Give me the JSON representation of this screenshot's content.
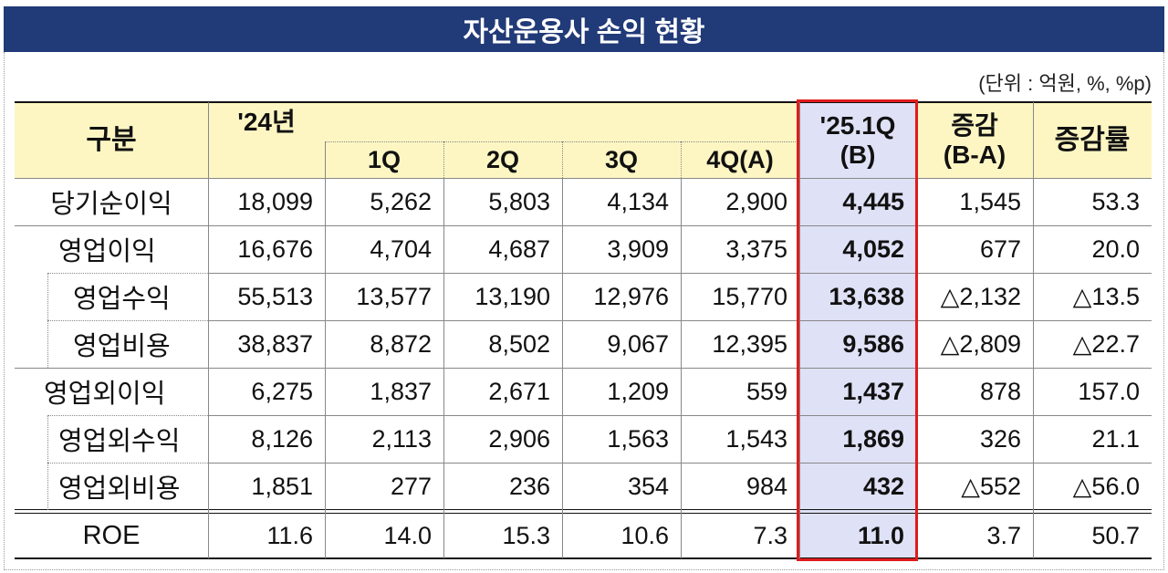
{
  "header": {
    "title": "자산운용사 손익 현황"
  },
  "unit": "(단위 : 억원, %, %p)",
  "table": {
    "columns": {
      "category": "구분",
      "year": "'24년",
      "quarters": [
        "1Q",
        "2Q",
        "3Q",
        "4Q(A)"
      ],
      "current": [
        "'25.1Q",
        "(B)"
      ],
      "change": [
        "증감",
        "(B-A)"
      ],
      "rate": "증감률"
    },
    "rows": [
      {
        "label": "당기순이익",
        "values": [
          "18,099",
          "5,262",
          "5,803",
          "4,134",
          "2,900",
          "4,445",
          "1,545",
          "53.3"
        ]
      },
      {
        "label": "영업이익",
        "values": [
          "16,676",
          "4,704",
          "4,687",
          "3,909",
          "3,375",
          "4,052",
          "677",
          "20.0"
        ]
      },
      {
        "label": "영업수익",
        "values": [
          "55,513",
          "13,577",
          "13,190",
          "12,976",
          "15,770",
          "13,638",
          "△2,132",
          "△13.5"
        ]
      },
      {
        "label": "영업비용",
        "values": [
          "38,837",
          "8,872",
          "8,502",
          "9,067",
          "12,395",
          "9,586",
          "△2,809",
          "△22.7"
        ]
      },
      {
        "label": "영업외이익",
        "values": [
          "6,275",
          "1,837",
          "2,671",
          "1,209",
          "559",
          "1,437",
          "878",
          "157.0"
        ]
      },
      {
        "label": "영업외수익",
        "values": [
          "8,126",
          "2,113",
          "2,906",
          "1,563",
          "1,543",
          "1,869",
          "326",
          "21.1"
        ]
      },
      {
        "label": "영업외비용",
        "values": [
          "1,851",
          "277",
          "236",
          "354",
          "984",
          "432",
          "△552",
          "△56.0"
        ]
      },
      {
        "label": "ROE",
        "values": [
          "11.6",
          "14.0",
          "15.3",
          "10.6",
          "7.3",
          "11.0",
          "3.7",
          "50.7"
        ]
      }
    ]
  }
}
